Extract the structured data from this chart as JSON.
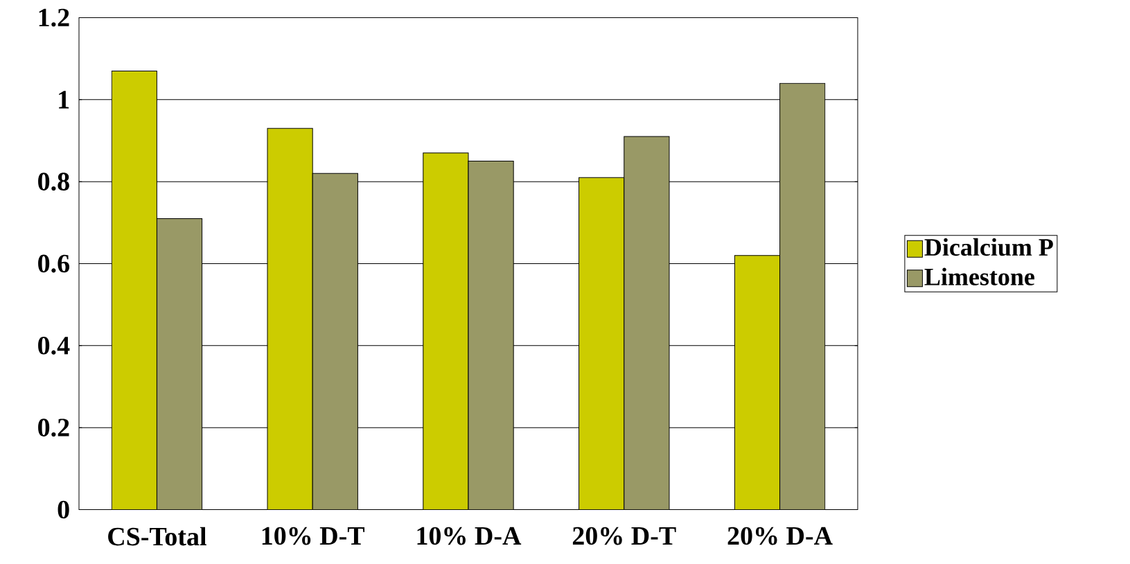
{
  "chart_data": {
    "type": "bar",
    "categories": [
      "CS-Total",
      "10% D-T",
      "10% D-A",
      "20% D-T",
      "20% D-A"
    ],
    "series": [
      {
        "name": "Dicalcium P",
        "color": "#cccc00",
        "values": [
          1.07,
          0.93,
          0.87,
          0.81,
          0.62
        ]
      },
      {
        "name": "Limestone",
        "color": "#999966",
        "values": [
          0.71,
          0.82,
          0.85,
          0.91,
          1.04
        ]
      }
    ],
    "ylim": [
      0,
      1.2
    ],
    "yticks": [
      0,
      0.2,
      0.4,
      0.6,
      0.8,
      1,
      1.2
    ],
    "grid": "y",
    "legend": "right"
  }
}
